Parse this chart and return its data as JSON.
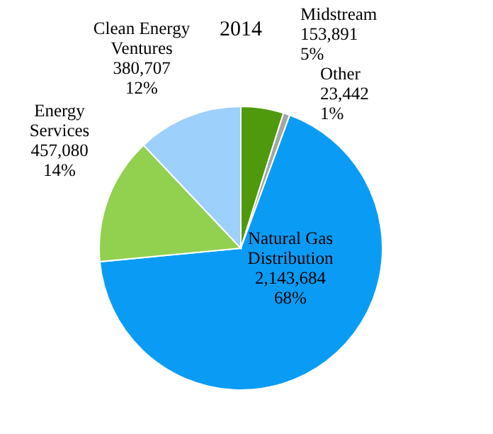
{
  "chart_data": {
    "type": "pie",
    "title": "2014",
    "categories": [
      "Midstream",
      "Other",
      "Natural Gas Distribution",
      "Energy Services",
      "Clean Energy Ventures"
    ],
    "values": [
      153891,
      23442,
      2143684,
      457080,
      380707
    ],
    "value_labels": [
      "153,891\n5%",
      "23,442\n1%",
      "2,143,684\n68%",
      "457,080\n14%",
      "380,707\n12%"
    ],
    "colors": [
      "#4f9a0c",
      "#a6a6a6",
      "#0a9cf5",
      "#92d050",
      "#9dd0fb"
    ]
  }
}
